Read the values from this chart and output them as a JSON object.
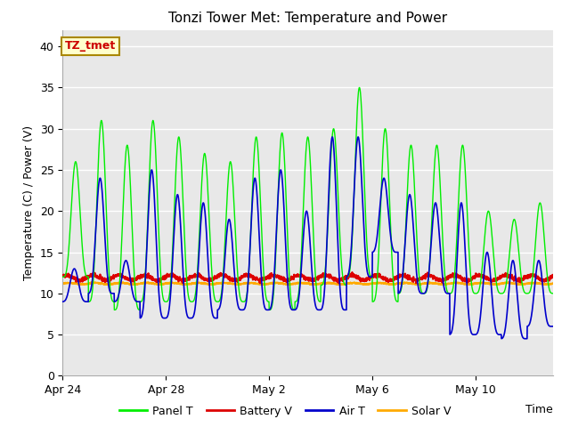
{
  "title": "Tonzi Tower Met: Temperature and Power",
  "xlabel": "Time",
  "ylabel": "Temperature (C) / Power (V)",
  "ylim": [
    0,
    42
  ],
  "yticks": [
    0,
    5,
    10,
    15,
    20,
    25,
    30,
    35,
    40
  ],
  "bg_color": "#e8e8e8",
  "fig_color": "#ffffff",
  "annotation_text": "TZ_tmet",
  "annotation_color": "#cc0000",
  "annotation_bg": "#ffffcc",
  "annotation_border": "#aa8800",
  "legend_labels": [
    "Panel T",
    "Battery V",
    "Air T",
    "Solar V"
  ],
  "legend_colors": [
    "#00ee00",
    "#dd0000",
    "#0000cc",
    "#ffaa00"
  ],
  "line_colors": {
    "panel": "#00ee00",
    "battery": "#dd0000",
    "air": "#0000cc",
    "solar": "#ffaa00"
  },
  "x_tick_labels": [
    "Apr 24",
    "Apr 28",
    "May 2",
    "May 6",
    "May 10"
  ],
  "x_tick_positions": [
    0,
    4,
    8,
    12,
    16
  ],
  "num_days": 19,
  "panel_peaks": [
    26,
    31,
    28,
    31,
    29,
    27,
    26,
    29,
    29.5,
    29,
    30,
    35,
    30,
    28,
    28,
    28,
    20,
    19,
    21
  ],
  "panel_troughs": [
    12,
    9,
    8,
    9,
    9,
    9,
    9,
    9,
    8,
    9,
    11,
    12,
    9,
    10,
    10,
    10,
    10,
    10,
    10
  ],
  "air_peaks": [
    13,
    24,
    14,
    25,
    22,
    21,
    19,
    24,
    25,
    20,
    29,
    29,
    24,
    22,
    21,
    21,
    15,
    14,
    14
  ],
  "air_troughs": [
    9,
    10,
    9,
    7,
    7,
    7,
    8,
    8,
    8,
    8,
    8,
    12,
    15,
    10,
    10,
    5,
    5,
    4.5,
    6
  ],
  "battery_base": 11.9,
  "solar_base": 11.2,
  "battery_amplitude": 0.3,
  "solar_amplitude": 0.08
}
